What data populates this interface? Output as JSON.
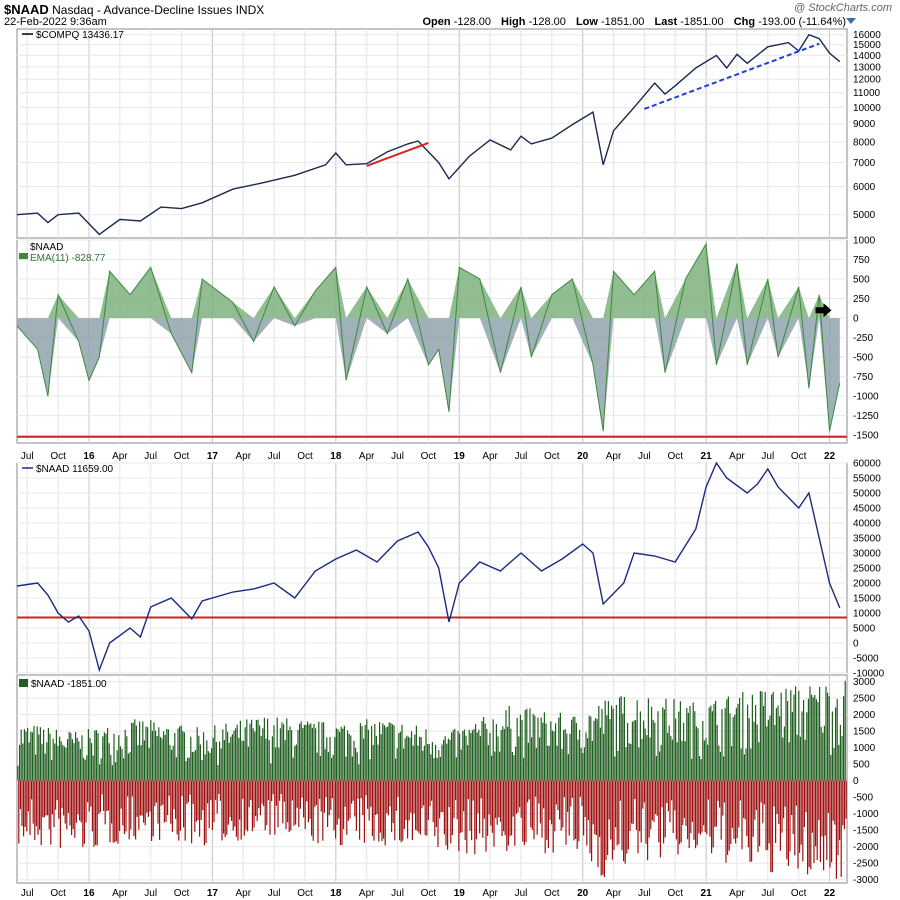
{
  "header": {
    "symbol": "$NAAD",
    "description": "Nasdaq - Advance-Decline Issues  INDX",
    "date": "22-Feb-2022 9:36am",
    "watermark": "@ StockCharts.com",
    "open_label": "Open",
    "open": "-128.00",
    "high_label": "High",
    "high": "-128.00",
    "low_label": "Low",
    "low": "-1851.00",
    "last_label": "Last",
    "last": "-1851.00",
    "chg_label": "Chg",
    "chg": "-193.00 (-11.64%)"
  },
  "x_axis_labels": [
    "Jul",
    "Oct",
    "16",
    "Apr",
    "Jul",
    "Oct",
    "17",
    "Apr",
    "Jul",
    "Oct",
    "18",
    "Apr",
    "Jul",
    "Oct",
    "19",
    "Apr",
    "Jul",
    "Oct",
    "20",
    "Apr",
    "Jul",
    "Oct",
    "21",
    "Apr",
    "Jul",
    "Oct",
    "22"
  ],
  "chart_data": [
    {
      "type": "line",
      "panel": "price",
      "legend": "$COMPQ 13436.17",
      "y_scale": "log",
      "y_ticks": [
        5000,
        6000,
        7000,
        8000,
        9000,
        10000,
        11000,
        12000,
        13000,
        14000,
        15000,
        16000
      ],
      "ylim": [
        4300,
        16600
      ],
      "series": [
        {
          "name": "$COMPQ",
          "color": "#1a2a4f",
          "points": [
            [
              "2015-06",
              5000
            ],
            [
              "2015-08",
              5050
            ],
            [
              "2015-09",
              4750
            ],
            [
              "2015-10",
              5000
            ],
            [
              "2015-12",
              5050
            ],
            [
              "2016-02",
              4400
            ],
            [
              "2016-04",
              4850
            ],
            [
              "2016-06",
              4800
            ],
            [
              "2016-08",
              5250
            ],
            [
              "2016-10",
              5200
            ],
            [
              "2016-12",
              5400
            ],
            [
              "2017-03",
              5900
            ],
            [
              "2017-06",
              6150
            ],
            [
              "2017-09",
              6450
            ],
            [
              "2017-12",
              6900
            ],
            [
              "2018-01",
              7450
            ],
            [
              "2018-02",
              6900
            ],
            [
              "2018-04",
              6950
            ],
            [
              "2018-06",
              7500
            ],
            [
              "2018-08",
              7900
            ],
            [
              "2018-09",
              8050
            ],
            [
              "2018-11",
              7000
            ],
            [
              "2018-12",
              6300
            ],
            [
              "2019-02",
              7300
            ],
            [
              "2019-04",
              8100
            ],
            [
              "2019-06",
              7600
            ],
            [
              "2019-07",
              8300
            ],
            [
              "2019-08",
              7900
            ],
            [
              "2019-10",
              8200
            ],
            [
              "2019-12",
              8950
            ],
            [
              "2020-02",
              9700
            ],
            [
              "2020-03",
              6900
            ],
            [
              "2020-04",
              8600
            ],
            [
              "2020-06",
              10000
            ],
            [
              "2020-08",
              11700
            ],
            [
              "2020-09",
              10900
            ],
            [
              "2020-10",
              11500
            ],
            [
              "2020-12",
              12900
            ],
            [
              "2021-02",
              14000
            ],
            [
              "2021-03",
              12900
            ],
            [
              "2021-04",
              14100
            ],
            [
              "2021-05",
              13300
            ],
            [
              "2021-07",
              14800
            ],
            [
              "2021-09",
              15200
            ],
            [
              "2021-10",
              14400
            ],
            [
              "2021-11",
              16000
            ],
            [
              "2021-12",
              15600
            ],
            [
              "2022-01",
              14200
            ],
            [
              "2022-02",
              13436
            ]
          ]
        }
      ],
      "trendlines": [
        {
          "color": "#e02020",
          "style": "solid",
          "from": [
            "2018-04",
            6850
          ],
          "to": [
            "2018-10",
            7950
          ]
        },
        {
          "color": "#1f3fd6",
          "style": "dashed",
          "from": [
            "2020-07",
            9900
          ],
          "to": [
            "2021-12",
            15100
          ]
        }
      ]
    },
    {
      "type": "area",
      "panel": "ema",
      "legend": "$NAAD",
      "legend2": "EMA(11) -828.77",
      "y_ticks": [
        1000,
        750,
        500,
        250,
        0,
        -250,
        -500,
        -750,
        -1000,
        -1250,
        -1500
      ],
      "ylim": [
        -1600,
        1000
      ],
      "reference_line": {
        "value": -1520,
        "color": "#d02020"
      },
      "arrow_marker": {
        "date": "2022-01",
        "value": 100,
        "color": "#000000"
      },
      "series": [
        {
          "name": "EMA(11)",
          "color": "#3a8a3a",
          "points": [
            [
              "2015-06",
              -100
            ],
            [
              "2015-08",
              -400
            ],
            [
              "2015-09",
              -1000
            ],
            [
              "2015-10",
              300
            ],
            [
              "2015-12",
              -300
            ],
            [
              "2016-01",
              -800
            ],
            [
              "2016-02",
              -500
            ],
            [
              "2016-03",
              600
            ],
            [
              "2016-05",
              300
            ],
            [
              "2016-07",
              650
            ],
            [
              "2016-09",
              -200
            ],
            [
              "2016-11",
              -700
            ],
            [
              "2016-12",
              500
            ],
            [
              "2017-03",
              200
            ],
            [
              "2017-05",
              -300
            ],
            [
              "2017-07",
              400
            ],
            [
              "2017-09",
              -100
            ],
            [
              "2017-11",
              350
            ],
            [
              "2018-01",
              650
            ],
            [
              "2018-02",
              -800
            ],
            [
              "2018-04",
              400
            ],
            [
              "2018-06",
              -200
            ],
            [
              "2018-08",
              500
            ],
            [
              "2018-10",
              -600
            ],
            [
              "2018-11",
              -400
            ],
            [
              "2018-12",
              -1200
            ],
            [
              "2019-01",
              650
            ],
            [
              "2019-03",
              500
            ],
            [
              "2019-05",
              -700
            ],
            [
              "2019-07",
              400
            ],
            [
              "2019-08",
              -500
            ],
            [
              "2019-10",
              300
            ],
            [
              "2019-12",
              500
            ],
            [
              "2020-02",
              -600
            ],
            [
              "2020-03",
              -1450
            ],
            [
              "2020-04",
              600
            ],
            [
              "2020-06",
              300
            ],
            [
              "2020-08",
              600
            ],
            [
              "2020-09",
              -700
            ],
            [
              "2020-11",
              500
            ],
            [
              "2021-01",
              950
            ],
            [
              "2021-02",
              -600
            ],
            [
              "2021-04",
              700
            ],
            [
              "2021-05",
              -600
            ],
            [
              "2021-07",
              500
            ],
            [
              "2021-08",
              -500
            ],
            [
              "2021-10",
              400
            ],
            [
              "2021-11",
              -900
            ],
            [
              "2021-12",
              300
            ],
            [
              "2022-01",
              -1450
            ],
            [
              "2022-02",
              -829
            ]
          ]
        }
      ]
    },
    {
      "type": "line",
      "panel": "cumulative",
      "legend": "$NAAD 11659.00",
      "y_ticks": [
        60000,
        55000,
        50000,
        45000,
        40000,
        35000,
        30000,
        25000,
        20000,
        15000,
        10000,
        5000,
        0,
        -5000,
        -10000
      ],
      "ylim": [
        -10000,
        60000
      ],
      "reference_line": {
        "value": 8500,
        "color": "#d02020"
      },
      "series": [
        {
          "name": "$NAAD",
          "color": "#1a2a80",
          "points": [
            [
              "2015-06",
              19000
            ],
            [
              "2015-08",
              20000
            ],
            [
              "2015-09",
              16000
            ],
            [
              "2015-10",
              10000
            ],
            [
              "2015-11",
              7000
            ],
            [
              "2015-12",
              9000
            ],
            [
              "2016-01",
              4000
            ],
            [
              "2016-02",
              -9000
            ],
            [
              "2016-03",
              0
            ],
            [
              "2016-05",
              5000
            ],
            [
              "2016-06",
              2000
            ],
            [
              "2016-07",
              12000
            ],
            [
              "2016-09",
              15000
            ],
            [
              "2016-11",
              8000
            ],
            [
              "2016-12",
              14000
            ],
            [
              "2017-03",
              17000
            ],
            [
              "2017-05",
              18000
            ],
            [
              "2017-07",
              20000
            ],
            [
              "2017-09",
              15000
            ],
            [
              "2017-11",
              24000
            ],
            [
              "2018-01",
              28000
            ],
            [
              "2018-03",
              31000
            ],
            [
              "2018-05",
              27000
            ],
            [
              "2018-07",
              34000
            ],
            [
              "2018-09",
              37000
            ],
            [
              "2018-10",
              32000
            ],
            [
              "2018-11",
              25000
            ],
            [
              "2018-12",
              7000
            ],
            [
              "2019-01",
              20000
            ],
            [
              "2019-03",
              27000
            ],
            [
              "2019-05",
              24000
            ],
            [
              "2019-07",
              30000
            ],
            [
              "2019-09",
              24000
            ],
            [
              "2019-11",
              28000
            ],
            [
              "2020-01",
              33000
            ],
            [
              "2020-02",
              30000
            ],
            [
              "2020-03",
              13000
            ],
            [
              "2020-05",
              20000
            ],
            [
              "2020-06",
              30000
            ],
            [
              "2020-08",
              29000
            ],
            [
              "2020-10",
              27000
            ],
            [
              "2020-12",
              38000
            ],
            [
              "2021-01",
              52000
            ],
            [
              "2021-02",
              60000
            ],
            [
              "2021-03",
              55000
            ],
            [
              "2021-05",
              50000
            ],
            [
              "2021-06",
              53000
            ],
            [
              "2021-07",
              58000
            ],
            [
              "2021-08",
              52000
            ],
            [
              "2021-10",
              45000
            ],
            [
              "2021-11",
              50000
            ],
            [
              "2021-12",
              35000
            ],
            [
              "2022-01",
              20000
            ],
            [
              "2022-02",
              11659
            ]
          ]
        }
      ]
    },
    {
      "type": "bar",
      "panel": "daily",
      "legend": "$NAAD -1851.00",
      "y_ticks": [
        3000,
        2500,
        2000,
        1500,
        1000,
        500,
        0,
        -500,
        -1000,
        -1500,
        -2000,
        -2500,
        -3000
      ],
      "ylim": [
        -3100,
        3200
      ],
      "colors": {
        "up": "#1f5f1f",
        "down": "#a01010"
      },
      "series": [
        {
          "name": "$NAAD",
          "range_points": [
            [
              "2015-06",
              1800,
              -2000
            ],
            [
              "2015-12",
              1500,
              -2200
            ],
            [
              "2016-06",
              1900,
              -1800
            ],
            [
              "2016-12",
              1600,
              -2000
            ],
            [
              "2017-06",
              2000,
              -1700
            ],
            [
              "2017-12",
              1800,
              -2000
            ],
            [
              "2018-06",
              1900,
              -2000
            ],
            [
              "2018-12",
              1500,
              -2300
            ],
            [
              "2019-06",
              2300,
              -2200
            ],
            [
              "2019-12",
              2000,
              -2200
            ],
            [
              "2020-03",
              2500,
              -3000
            ],
            [
              "2020-06",
              2700,
              -2500
            ],
            [
              "2020-12",
              2400,
              -2300
            ],
            [
              "2021-06",
              2800,
              -2800
            ],
            [
              "2021-12",
              3000,
              -3000
            ],
            [
              "2022-02",
              3100,
              -3000
            ]
          ]
        }
      ]
    }
  ]
}
